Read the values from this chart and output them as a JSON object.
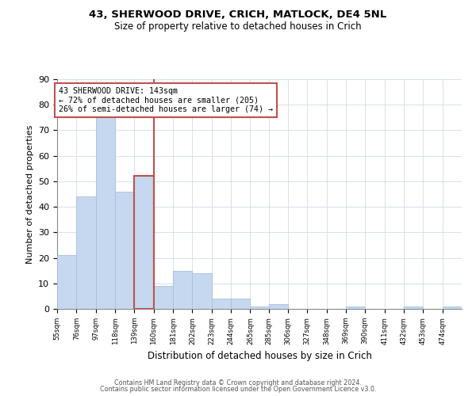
{
  "title1": "43, SHERWOOD DRIVE, CRICH, MATLOCK, DE4 5NL",
  "title2": "Size of property relative to detached houses in Crich",
  "xlabel": "Distribution of detached houses by size in Crich",
  "ylabel": "Number of detached properties",
  "bins": [
    55,
    76,
    97,
    118,
    139,
    160,
    181,
    202,
    223,
    244,
    265,
    285,
    306,
    327,
    348,
    369,
    390,
    411,
    432,
    453,
    474
  ],
  "counts": [
    21,
    44,
    75,
    46,
    52,
    9,
    15,
    14,
    4,
    4,
    1,
    2,
    0,
    0,
    0,
    1,
    0,
    0,
    1,
    0,
    1
  ],
  "bar_color": "#c5d8f0",
  "bar_edge_color": "#aabfd8",
  "highlight_bar_index": 4,
  "highlight_bar_edge_color": "#c0504d",
  "vline_color": "#c0504d",
  "annotation_text": "43 SHERWOOD DRIVE: 143sqm\n← 72% of detached houses are smaller (205)\n26% of semi-detached houses are larger (74) →",
  "annotation_box_edge_color": "#c0504d",
  "ylim": [
    0,
    90
  ],
  "yticks": [
    0,
    10,
    20,
    30,
    40,
    50,
    60,
    70,
    80,
    90
  ],
  "tick_labels": [
    "55sqm",
    "76sqm",
    "97sqm",
    "118sqm",
    "139sqm",
    "160sqm",
    "181sqm",
    "202sqm",
    "223sqm",
    "244sqm",
    "265sqm",
    "285sqm",
    "306sqm",
    "327sqm",
    "348sqm",
    "369sqm",
    "390sqm",
    "411sqm",
    "432sqm",
    "453sqm",
    "474sqm"
  ],
  "footer1": "Contains HM Land Registry data © Crown copyright and database right 2024.",
  "footer2": "Contains public sector information licensed under the Open Government Licence v3.0.",
  "bg_color": "#ffffff",
  "grid_color": "#d0dce8"
}
